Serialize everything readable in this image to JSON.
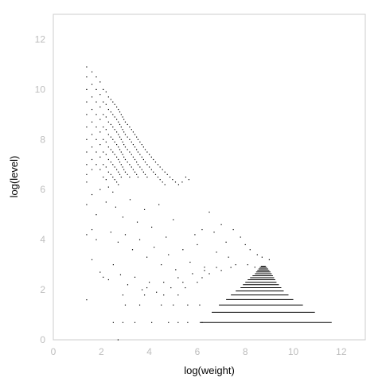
{
  "chart_data": {
    "type": "scatter",
    "xlabel": "log(weight)",
    "ylabel": "log(level)",
    "xlim": [
      0,
      13
    ],
    "ylim": [
      0,
      13
    ],
    "xticks": [
      "0",
      "2",
      "4",
      "6",
      "8",
      "10",
      "12"
    ],
    "yticks": [
      "0",
      "2",
      "4",
      "6",
      "8",
      "10",
      "12"
    ],
    "grid": false,
    "colors": {
      "points": "#000000",
      "frame": "#cccccc",
      "ticks": "#bdbdbd"
    },
    "series": [
      {
        "values": [
          [
            1.39,
            10.9
          ],
          [
            1.39,
            10.5
          ],
          [
            1.39,
            10.0
          ],
          [
            1.39,
            9.5
          ],
          [
            1.39,
            9.0
          ],
          [
            1.39,
            8.5
          ],
          [
            1.39,
            8.0
          ],
          [
            1.39,
            7.5
          ],
          [
            1.39,
            7.0
          ],
          [
            1.39,
            6.6
          ],
          [
            1.39,
            6.3
          ],
          [
            1.39,
            5.4
          ],
          [
            1.39,
            4.2
          ],
          [
            1.39,
            1.6
          ],
          [
            1.61,
            10.7
          ],
          [
            1.61,
            10.2
          ],
          [
            1.61,
            9.7
          ],
          [
            1.61,
            9.2
          ],
          [
            1.61,
            8.7
          ],
          [
            1.61,
            8.2
          ],
          [
            1.61,
            7.7
          ],
          [
            1.61,
            7.2
          ],
          [
            1.61,
            6.8
          ],
          [
            1.61,
            5.8
          ],
          [
            1.61,
            4.4
          ],
          [
            1.61,
            3.2
          ],
          [
            1.79,
            10.5
          ],
          [
            1.79,
            10.0
          ],
          [
            1.79,
            9.5
          ],
          [
            1.79,
            9.0
          ],
          [
            1.79,
            8.5
          ],
          [
            1.79,
            8.0
          ],
          [
            1.79,
            7.5
          ],
          [
            1.79,
            7.0
          ],
          [
            1.79,
            5.0
          ],
          [
            1.79,
            4.0
          ],
          [
            1.95,
            10.3
          ],
          [
            1.95,
            9.8
          ],
          [
            1.95,
            9.3
          ],
          [
            1.95,
            8.8
          ],
          [
            1.95,
            8.3
          ],
          [
            1.95,
            7.8
          ],
          [
            1.95,
            7.3
          ],
          [
            1.95,
            6.8
          ],
          [
            1.95,
            6.0
          ],
          [
            1.95,
            2.7
          ],
          [
            2.08,
            10.0
          ],
          [
            2.08,
            9.5
          ],
          [
            2.08,
            9.0
          ],
          [
            2.08,
            8.5
          ],
          [
            2.08,
            8.0
          ],
          [
            2.08,
            7.5
          ],
          [
            2.08,
            7.0
          ],
          [
            2.08,
            6.5
          ],
          [
            2.08,
            2.5
          ],
          [
            2.2,
            9.9
          ],
          [
            2.2,
            9.4
          ],
          [
            2.2,
            8.9
          ],
          [
            2.2,
            8.4
          ],
          [
            2.2,
            7.9
          ],
          [
            2.2,
            7.4
          ],
          [
            2.2,
            6.9
          ],
          [
            2.2,
            6.4
          ],
          [
            2.3,
            9.7
          ],
          [
            2.3,
            9.2
          ],
          [
            2.3,
            8.7
          ],
          [
            2.3,
            8.2
          ],
          [
            2.3,
            7.7
          ],
          [
            2.3,
            7.2
          ],
          [
            2.3,
            6.7
          ],
          [
            2.3,
            6.1
          ],
          [
            2.4,
            9.6
          ],
          [
            2.4,
            9.1
          ],
          [
            2.4,
            8.6
          ],
          [
            2.4,
            8.1
          ],
          [
            2.4,
            7.6
          ],
          [
            2.4,
            7.1
          ],
          [
            2.4,
            6.6
          ],
          [
            2.48,
            9.5
          ],
          [
            2.48,
            9.0
          ],
          [
            2.48,
            8.5
          ],
          [
            2.48,
            8.0
          ],
          [
            2.48,
            7.5
          ],
          [
            2.48,
            7.0
          ],
          [
            2.48,
            6.5
          ],
          [
            2.48,
            5.9
          ],
          [
            2.56,
            9.4
          ],
          [
            2.56,
            8.9
          ],
          [
            2.56,
            8.4
          ],
          [
            2.56,
            7.9
          ],
          [
            2.56,
            7.4
          ],
          [
            2.56,
            6.9
          ],
          [
            2.56,
            6.4
          ],
          [
            2.64,
            9.3
          ],
          [
            2.64,
            8.8
          ],
          [
            2.64,
            8.3
          ],
          [
            2.64,
            7.8
          ],
          [
            2.64,
            7.3
          ],
          [
            2.64,
            6.8
          ],
          [
            2.64,
            6.3
          ],
          [
            2.71,
            9.2
          ],
          [
            2.71,
            8.7
          ],
          [
            2.71,
            8.2
          ],
          [
            2.71,
            7.7
          ],
          [
            2.71,
            7.2
          ],
          [
            2.71,
            6.7
          ],
          [
            2.71,
            6.2
          ],
          [
            2.77,
            9.1
          ],
          [
            2.77,
            8.6
          ],
          [
            2.77,
            8.1
          ],
          [
            2.77,
            7.6
          ],
          [
            2.77,
            7.1
          ],
          [
            2.77,
            6.6
          ],
          [
            2.83,
            9.0
          ],
          [
            2.83,
            8.5
          ],
          [
            2.83,
            8.0
          ],
          [
            2.83,
            7.5
          ],
          [
            2.83,
            7.0
          ],
          [
            2.83,
            6.5
          ],
          [
            2.89,
            8.9
          ],
          [
            2.89,
            8.4
          ],
          [
            2.89,
            7.9
          ],
          [
            2.89,
            7.4
          ],
          [
            2.89,
            6.9
          ],
          [
            2.94,
            8.8
          ],
          [
            2.94,
            8.3
          ],
          [
            2.94,
            7.8
          ],
          [
            2.94,
            7.3
          ],
          [
            2.94,
            6.8
          ],
          [
            3.0,
            8.7
          ],
          [
            3.0,
            8.2
          ],
          [
            3.0,
            7.7
          ],
          [
            3.0,
            7.2
          ],
          [
            3.0,
            6.7
          ],
          [
            3.09,
            8.6
          ],
          [
            3.09,
            8.1
          ],
          [
            3.09,
            7.6
          ],
          [
            3.09,
            7.1
          ],
          [
            3.09,
            6.6
          ],
          [
            3.18,
            8.5
          ],
          [
            3.18,
            8.0
          ],
          [
            3.18,
            7.5
          ],
          [
            3.18,
            7.0
          ],
          [
            3.18,
            6.5
          ],
          [
            3.26,
            8.4
          ],
          [
            3.26,
            7.9
          ],
          [
            3.26,
            7.4
          ],
          [
            3.26,
            6.9
          ],
          [
            3.33,
            8.3
          ],
          [
            3.33,
            7.8
          ],
          [
            3.33,
            7.3
          ],
          [
            3.33,
            6.8
          ],
          [
            3.4,
            8.2
          ],
          [
            3.4,
            7.7
          ],
          [
            3.4,
            7.2
          ],
          [
            3.4,
            6.7
          ],
          [
            3.47,
            8.1
          ],
          [
            3.47,
            7.6
          ],
          [
            3.47,
            7.1
          ],
          [
            3.47,
            6.6
          ],
          [
            3.53,
            8.0
          ],
          [
            3.53,
            7.5
          ],
          [
            3.53,
            7.0
          ],
          [
            3.53,
            6.5
          ],
          [
            3.61,
            7.9
          ],
          [
            3.61,
            7.4
          ],
          [
            3.61,
            6.9
          ],
          [
            3.69,
            7.8
          ],
          [
            3.69,
            7.3
          ],
          [
            3.69,
            6.8
          ],
          [
            3.76,
            7.7
          ],
          [
            3.76,
            7.2
          ],
          [
            3.76,
            6.7
          ],
          [
            3.83,
            7.6
          ],
          [
            3.83,
            7.1
          ],
          [
            3.83,
            6.6
          ],
          [
            3.91,
            7.5
          ],
          [
            3.91,
            7.0
          ],
          [
            3.91,
            6.5
          ],
          [
            4.0,
            7.4
          ],
          [
            4.0,
            6.9
          ],
          [
            4.09,
            7.3
          ],
          [
            4.09,
            6.8
          ],
          [
            4.17,
            7.2
          ],
          [
            4.17,
            6.7
          ],
          [
            4.26,
            7.1
          ],
          [
            4.26,
            6.6
          ],
          [
            4.36,
            7.0
          ],
          [
            4.36,
            6.5
          ],
          [
            4.45,
            6.9
          ],
          [
            4.45,
            6.4
          ],
          [
            4.55,
            6.8
          ],
          [
            4.55,
            6.3
          ],
          [
            4.65,
            6.7
          ],
          [
            4.65,
            6.2
          ],
          [
            4.75,
            6.6
          ],
          [
            4.86,
            6.5
          ],
          [
            4.97,
            6.4
          ],
          [
            5.09,
            6.3
          ],
          [
            5.22,
            6.2
          ],
          [
            5.37,
            6.3
          ],
          [
            5.52,
            6.5
          ],
          [
            5.65,
            6.4
          ],
          [
            2.2,
            5.5
          ],
          [
            2.6,
            5.3
          ],
          [
            2.9,
            4.9
          ],
          [
            3.2,
            5.6
          ],
          [
            3.5,
            4.7
          ],
          [
            3.8,
            5.2
          ],
          [
            4.1,
            4.5
          ],
          [
            4.4,
            5.4
          ],
          [
            4.7,
            4.1
          ],
          [
            5.0,
            4.8
          ],
          [
            2.4,
            4.3
          ],
          [
            2.7,
            3.9
          ],
          [
            3.0,
            4.2
          ],
          [
            3.3,
            3.6
          ],
          [
            3.6,
            4.0
          ],
          [
            3.9,
            3.3
          ],
          [
            4.2,
            3.7
          ],
          [
            4.5,
            3.0
          ],
          [
            4.8,
            3.4
          ],
          [
            5.1,
            2.8
          ],
          [
            2.5,
            3.0
          ],
          [
            2.8,
            2.6
          ],
          [
            3.1,
            2.2
          ],
          [
            3.4,
            2.5
          ],
          [
            3.7,
            2.0
          ],
          [
            4.0,
            2.3
          ],
          [
            4.3,
            1.9
          ],
          [
            2.3,
            2.4
          ],
          [
            5.4,
            3.6
          ],
          [
            5.7,
            3.1
          ],
          [
            6.0,
            3.8
          ],
          [
            6.3,
            2.9
          ],
          [
            6.5,
            5.1
          ],
          [
            6.7,
            4.3
          ],
          [
            7.0,
            4.6
          ],
          [
            7.2,
            3.9
          ],
          [
            7.5,
            4.4
          ],
          [
            7.8,
            4.1
          ],
          [
            8.0,
            3.8
          ],
          [
            8.2,
            3.6
          ],
          [
            8.5,
            3.4
          ],
          [
            8.7,
            3.3
          ],
          [
            9.0,
            3.2
          ],
          [
            6.2,
            4.4
          ],
          [
            6.8,
            3.5
          ],
          [
            7.3,
            3.3
          ],
          [
            7.6,
            3.0
          ],
          [
            8.1,
            3.0
          ],
          [
            8.4,
            2.9
          ],
          [
            5.9,
            4.2
          ],
          [
            4.8,
            0.69
          ],
          [
            5.2,
            0.69
          ],
          [
            5.6,
            0.69
          ],
          [
            4.1,
            0.69
          ],
          [
            3.4,
            0.69
          ],
          [
            2.9,
            0.69
          ],
          [
            2.5,
            0.69
          ],
          [
            6.2,
            0.69
          ],
          [
            4.5,
            1.39
          ],
          [
            5.0,
            1.39
          ],
          [
            5.6,
            1.39
          ],
          [
            6.1,
            1.39
          ],
          [
            3.0,
            1.39
          ],
          [
            3.6,
            1.39
          ],
          [
            2.9,
            1.79
          ],
          [
            3.8,
            1.79
          ],
          [
            4.6,
            1.79
          ],
          [
            5.2,
            1.79
          ],
          [
            3.9,
            2.08
          ],
          [
            4.9,
            2.08
          ],
          [
            5.5,
            2.08
          ],
          [
            4.6,
            2.3
          ],
          [
            5.4,
            2.3
          ],
          [
            6.0,
            2.3
          ],
          [
            5.2,
            2.48
          ],
          [
            6.2,
            2.48
          ],
          [
            5.8,
            2.64
          ],
          [
            6.5,
            2.64
          ],
          [
            6.3,
            2.77
          ],
          [
            7.0,
            2.77
          ],
          [
            6.8,
            2.89
          ],
          [
            7.4,
            2.89
          ],
          [
            2.7,
            0.0
          ]
        ],
        "hlines": [
          {
            "y": 0.69,
            "x": [
              6.1,
              11.6
            ]
          },
          {
            "y": 1.1,
            "x": [
              6.6,
              10.9
            ]
          },
          {
            "y": 1.39,
            "x": [
              6.9,
              10.4
            ]
          },
          {
            "y": 1.61,
            "x": [
              7.2,
              10.0
            ]
          },
          {
            "y": 1.79,
            "x": [
              7.4,
              9.8
            ]
          },
          {
            "y": 1.95,
            "x": [
              7.6,
              9.6
            ]
          },
          {
            "y": 2.08,
            "x": [
              7.8,
              9.5
            ]
          },
          {
            "y": 2.2,
            "x": [
              7.9,
              9.4
            ]
          },
          {
            "y": 2.3,
            "x": [
              8.0,
              9.3
            ]
          },
          {
            "y": 2.4,
            "x": [
              8.1,
              9.25
            ]
          },
          {
            "y": 2.48,
            "x": [
              8.2,
              9.2
            ]
          },
          {
            "y": 2.56,
            "x": [
              8.3,
              9.15
            ]
          },
          {
            "y": 2.64,
            "x": [
              8.4,
              9.1
            ]
          },
          {
            "y": 2.71,
            "x": [
              8.45,
              9.05
            ]
          },
          {
            "y": 2.77,
            "x": [
              8.5,
              9.0
            ]
          },
          {
            "y": 2.83,
            "x": [
              8.55,
              8.95
            ]
          },
          {
            "y": 2.89,
            "x": [
              8.6,
              8.9
            ]
          },
          {
            "y": 2.94,
            "x": [
              8.65,
              8.85
            ]
          }
        ]
      }
    ]
  }
}
